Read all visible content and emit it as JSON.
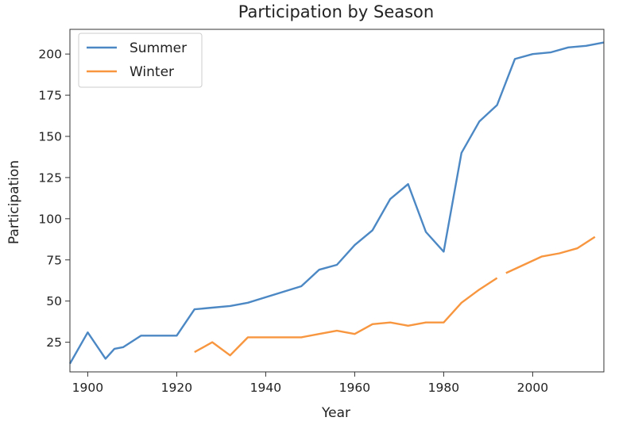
{
  "chart_data": {
    "type": "line",
    "title": "Participation by Season",
    "xlabel": "Year",
    "ylabel": "Participation",
    "xlim": [
      1896,
      2016
    ],
    "ylim": [
      7,
      215
    ],
    "x_ticks": [
      1900,
      1920,
      1940,
      1960,
      1980,
      2000
    ],
    "y_ticks": [
      25,
      50,
      75,
      100,
      125,
      150,
      175,
      200
    ],
    "grid": false,
    "legend_position": "top-left",
    "series": [
      {
        "name": "Summer",
        "color": "#4c88c4",
        "points": [
          [
            1896,
            12
          ],
          [
            1900,
            31
          ],
          [
            1904,
            15
          ],
          [
            1906,
            21
          ],
          [
            1908,
            22
          ],
          [
            1912,
            29
          ],
          [
            1920,
            29
          ],
          [
            1924,
            45
          ],
          [
            1928,
            46
          ],
          [
            1932,
            47
          ],
          [
            1936,
            49
          ],
          [
            1948,
            59
          ],
          [
            1952,
            69
          ],
          [
            1956,
            72
          ],
          [
            1960,
            84
          ],
          [
            1964,
            93
          ],
          [
            1968,
            112
          ],
          [
            1972,
            121
          ],
          [
            1976,
            92
          ],
          [
            1980,
            80
          ],
          [
            1984,
            140
          ],
          [
            1988,
            159
          ],
          [
            1992,
            169
          ],
          [
            1996,
            197
          ],
          [
            2000,
            200
          ],
          [
            2004,
            201
          ],
          [
            2008,
            204
          ],
          [
            2012,
            205
          ],
          [
            2016,
            207
          ]
        ]
      },
      {
        "name": "Winter",
        "color": "#f7963f",
        "points": [
          [
            1924,
            19
          ],
          [
            1928,
            25
          ],
          [
            1932,
            17
          ],
          [
            1936,
            28
          ],
          [
            1948,
            28
          ],
          [
            1952,
            30
          ],
          [
            1956,
            32
          ],
          [
            1960,
            30
          ],
          [
            1964,
            36
          ],
          [
            1968,
            37
          ],
          [
            1972,
            35
          ],
          [
            1976,
            37
          ],
          [
            1980,
            37
          ],
          [
            1984,
            49
          ],
          [
            1988,
            57
          ],
          [
            1992,
            64
          ],
          null,
          [
            1994,
            67
          ],
          [
            1998,
            72
          ],
          [
            2002,
            77
          ],
          [
            2006,
            79
          ],
          [
            2010,
            82
          ],
          [
            2014,
            89
          ]
        ]
      }
    ]
  }
}
